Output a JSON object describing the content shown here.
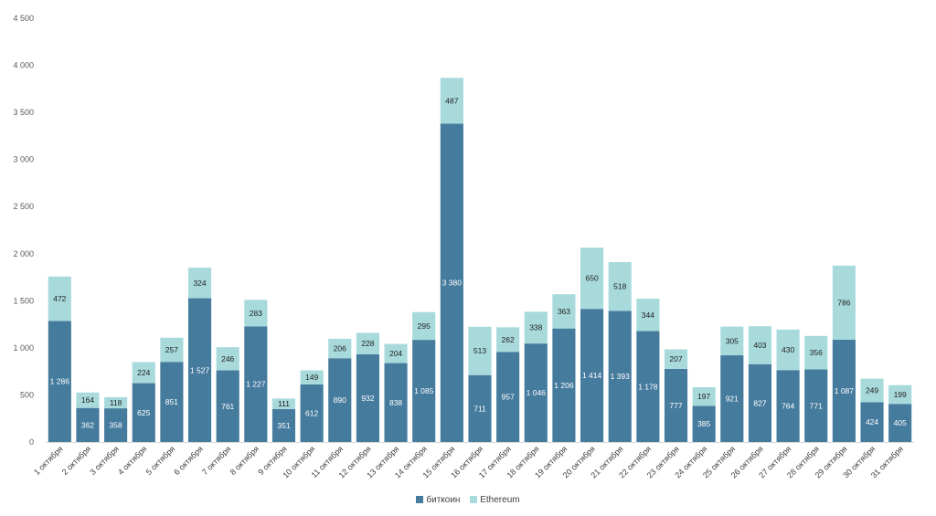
{
  "chart_data": {
    "type": "bar",
    "stacked": true,
    "categories": [
      "1 октября",
      "2 октября",
      "3 октября",
      "4 октября",
      "5 октября",
      "6 октября",
      "7 октября",
      "8 октября",
      "9 октября",
      "10 октября",
      "11 октября",
      "12 октября",
      "13 октября",
      "14 октября",
      "15 октября",
      "16 октября",
      "17 октября",
      "18 октября",
      "19 октября",
      "20 октября",
      "21 октября",
      "22 октября",
      "23 октября",
      "24 октября",
      "25 октября",
      "26 октября",
      "27 октября",
      "28 октября",
      "29 октября",
      "30 октября",
      "31 октября"
    ],
    "series": [
      {
        "name": "биткоин",
        "color": "#457b9d",
        "values": [
          1286,
          362,
          358,
          625,
          851,
          1527,
          761,
          1227,
          351,
          612,
          890,
          932,
          838,
          1085,
          3380,
          711,
          957,
          1046,
          1206,
          1414,
          1393,
          1178,
          777,
          385,
          921,
          827,
          764,
          771,
          1087,
          424,
          405
        ],
        "labels": [
          "1 286",
          "362",
          "358",
          "625",
          "851",
          "1 527",
          "761",
          "1 227",
          "351",
          "612",
          "890",
          "932",
          "838",
          "1 085",
          "3 380",
          "711",
          "957",
          "1 046",
          "1 206",
          "1 414",
          "1 393",
          "1 178",
          "777",
          "385",
          "921",
          "827",
          "764",
          "771",
          "1 087",
          "424",
          "405"
        ]
      },
      {
        "name": "Ethereum",
        "color": "#a8dadc",
        "values": [
          472,
          164,
          118,
          224,
          257,
          324,
          246,
          283,
          111,
          149,
          206,
          228,
          204,
          295,
          487,
          513,
          262,
          338,
          363,
          650,
          518,
          344,
          207,
          197,
          305,
          403,
          430,
          356,
          786,
          249,
          199
        ],
        "labels": [
          "472",
          "164",
          "118",
          "224",
          "257",
          "324",
          "246",
          "283",
          "111",
          "149",
          "206",
          "228",
          "204",
          "295",
          "487",
          "513",
          "262",
          "338",
          "363",
          "650",
          "518",
          "344",
          "207",
          "197",
          "305",
          "403",
          "430",
          "356",
          "786",
          "249",
          "199"
        ]
      }
    ],
    "ylim": [
      0,
      4500
    ],
    "yticks": [
      0,
      500,
      1000,
      1500,
      2000,
      2500,
      3000,
      3500,
      4000,
      4500
    ],
    "ytick_labels": [
      "0",
      "500",
      "1 000",
      "1 500",
      "2 000",
      "2 500",
      "3 000",
      "3 500",
      "4 000",
      "4 500"
    ],
    "grid": false,
    "legend_position": "bottom",
    "title": "",
    "xlabel": "",
    "ylabel": ""
  }
}
